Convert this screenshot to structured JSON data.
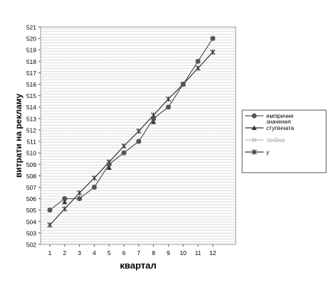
{
  "chart_data": {
    "type": "line",
    "xlabel": "квартал",
    "ylabel": "витрати на рекламу",
    "ylim": [
      502,
      521
    ],
    "x": [
      1,
      2,
      3,
      4,
      5,
      6,
      7,
      8,
      9,
      10,
      11,
      12
    ],
    "grid": "horizontal gradient background",
    "legend_position": "right",
    "series": [
      {
        "name": "емпіричне значення",
        "color": "#555555",
        "marker": "circle",
        "values": [
          505,
          506,
          506,
          507,
          509,
          510,
          511,
          513,
          514,
          516,
          518,
          520
        ]
      },
      {
        "name": "ступінчата",
        "color": "#333333",
        "marker": "triangle",
        "values": [
          null,
          505.7,
          null,
          null,
          508.7,
          null,
          null,
          512.7,
          null,
          null,
          null,
          null
        ]
      },
      {
        "name": "лінійна",
        "color": "#bbbbbb",
        "marker": "x",
        "values": [
          505,
          506,
          506,
          507,
          509,
          510,
          511,
          513,
          514,
          516,
          518,
          520
        ]
      },
      {
        "name": "у",
        "color": "#333333",
        "marker": "star",
        "values": [
          503.7,
          505.1,
          506.5,
          507.8,
          509.2,
          510.6,
          511.9,
          513.3,
          514.7,
          516.0,
          517.4,
          518.8
        ]
      }
    ]
  }
}
